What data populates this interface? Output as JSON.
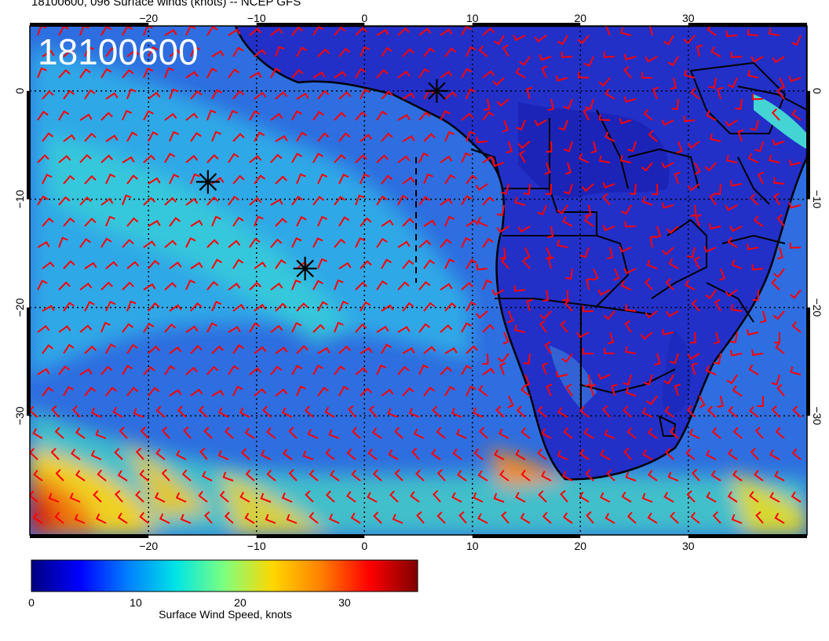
{
  "title": "18100600, 096 Surface winds (knots) -- NCEP GFS",
  "panel_label": "18100600",
  "x_ticks": [
    "−20",
    "−10",
    "0",
    "10",
    "20",
    "30"
  ],
  "x_tick_values": [
    -20,
    -10,
    0,
    10,
    20,
    30
  ],
  "y_ticks": [
    "0",
    "−10",
    "−20",
    "−30"
  ],
  "y_tick_values": [
    0,
    -10,
    -20,
    -30
  ],
  "lon_range": [
    -31,
    41
  ],
  "lat_range": [
    6,
    -41
  ],
  "colorbar": {
    "label": "Surface Wind Speed, knots",
    "ticks": [
      "0",
      "10",
      "20",
      "30"
    ],
    "tick_values": [
      0,
      10,
      20,
      30
    ],
    "range": [
      0,
      37
    ],
    "colors": [
      "#00007f",
      "#0000ff",
      "#0080ff",
      "#00e5e5",
      "#7fff7f",
      "#ffd700",
      "#ff8000",
      "#ff0000",
      "#7f0000"
    ]
  },
  "colors": {
    "barb": "#ff0000",
    "land": "#1e2fc8",
    "ocean": "#2f6fe0",
    "coast": "#000000"
  },
  "markers": [
    {
      "name": "storm-marker-1",
      "lon": 6.7,
      "lat": 0.0
    },
    {
      "name": "storm-marker-2",
      "lon": -14.5,
      "lat": -8.4
    },
    {
      "name": "storm-marker-3",
      "lon": -5.5,
      "lat": -16.4
    }
  ]
}
